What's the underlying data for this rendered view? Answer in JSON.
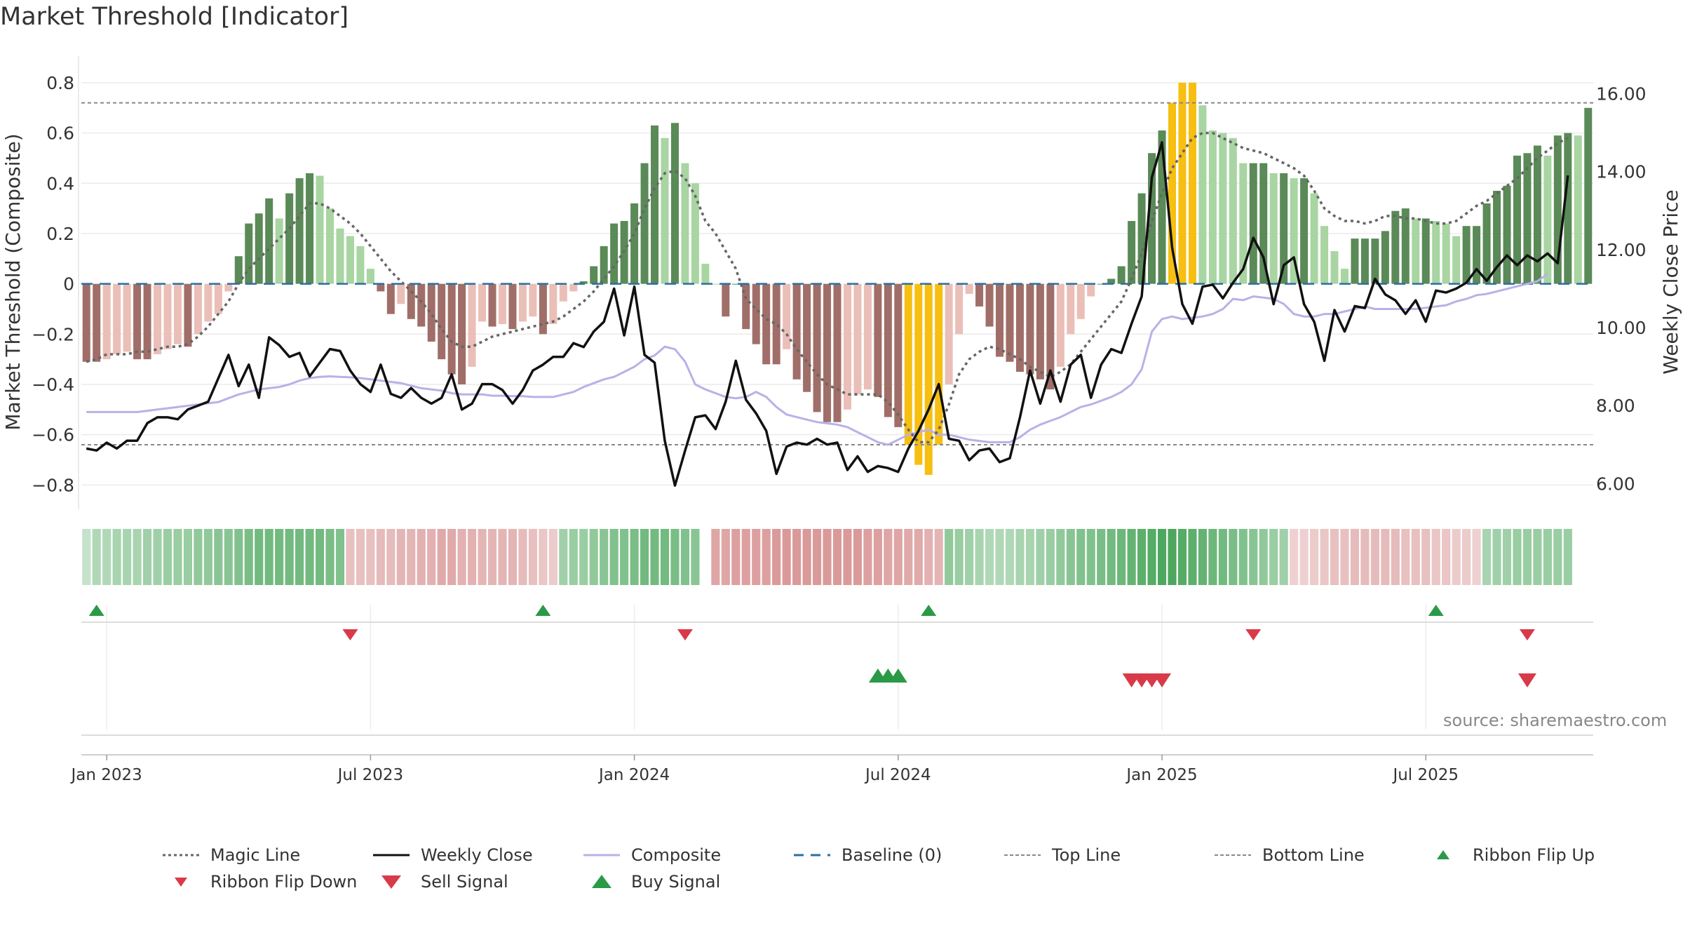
{
  "title": "Market Threshold [Indicator]",
  "source": "source: sharemaestro.com",
  "colors": {
    "bar_pos_dark": "#5a8a57",
    "bar_pos_light": "#a8d5a2",
    "bar_neg_dark": "#a06e68",
    "bar_neg_light": "#eabfb8",
    "bar_extreme": "#f6bf11",
    "weekly_close": "#111111",
    "composite": "#b9b1e6",
    "magic": "#666666",
    "baseline": "#2b6fa0",
    "buy": "#2a9a47",
    "sell": "#d93a4a"
  },
  "chart_data": {
    "type": "bar",
    "title": "Market Threshold [Indicator]",
    "ylabel": "Market Threshold (Composite)",
    "y2label": "Weekly Close Price",
    "ylim": [
      -0.88,
      0.85
    ],
    "y2lim": [
      5.45,
      16.6
    ],
    "yticks": [
      "0.8",
      "0.6",
      "0.4",
      "0.2",
      "0",
      "−0.2",
      "−0.4",
      "−0.6",
      "−0.8"
    ],
    "yticks_values": [
      0.8,
      0.6,
      0.4,
      0.2,
      0,
      -0.2,
      -0.4,
      -0.6,
      -0.8
    ],
    "y2ticks": [
      "16.00",
      "14.00",
      "12.00",
      "10.00",
      "8.00",
      "6.00"
    ],
    "y2ticks_values": [
      16,
      14,
      12,
      10,
      8,
      6
    ],
    "xticks": [
      "Jan 2023",
      "Jul 2023",
      "Jan 2024",
      "Jul 2024",
      "Jan 2025",
      "Jul 2025"
    ],
    "xticks_week": [
      2,
      28,
      54,
      80,
      106,
      132
    ],
    "top_line": 0.72,
    "bottom_line": -0.64,
    "composite_bars": [
      -0.31,
      -0.31,
      -0.3,
      -0.28,
      -0.27,
      -0.3,
      -0.3,
      -0.28,
      -0.26,
      -0.24,
      -0.25,
      -0.2,
      -0.15,
      -0.12,
      -0.03,
      0.11,
      0.24,
      0.28,
      0.34,
      0.26,
      0.36,
      0.42,
      0.44,
      0.43,
      0.3,
      0.22,
      0.19,
      0.15,
      0.06,
      -0.03,
      -0.12,
      -0.08,
      -0.14,
      -0.17,
      -0.23,
      -0.3,
      -0.36,
      -0.4,
      -0.33,
      -0.15,
      -0.17,
      -0.16,
      -0.18,
      -0.15,
      -0.13,
      -0.2,
      -0.16,
      -0.07,
      -0.03,
      0.01,
      0.07,
      0.15,
      0.24,
      0.25,
      0.32,
      0.48,
      0.63,
      0.58,
      0.64,
      0.48,
      0.4,
      0.08,
      0,
      -0.13,
      0,
      -0.18,
      -0.24,
      -0.32,
      -0.32,
      -0.26,
      -0.38,
      -0.43,
      -0.51,
      -0.55,
      -0.55,
      -0.5,
      -0.44,
      -0.42,
      -0.45,
      -0.53,
      -0.57,
      -0.64,
      -0.72,
      -0.76,
      -0.64,
      -0.4,
      -0.2,
      -0.04,
      -0.09,
      -0.17,
      -0.29,
      -0.31,
      -0.35,
      -0.36,
      -0.38,
      -0.42,
      -0.33,
      -0.2,
      -0.14,
      -0.05,
      0,
      0.02,
      0.07,
      0.25,
      0.36,
      0.52,
      0.61,
      0.72,
      0.8,
      0.8,
      0.71,
      0.61,
      0.6,
      0.58,
      0.48,
      0.48,
      0.48,
      0.44,
      0.44,
      0.42,
      0.42,
      0.36,
      0.23,
      0.13,
      0.06,
      0.18,
      0.18,
      0.18,
      0.21,
      0.29,
      0.3,
      0.26,
      0.26,
      0.25,
      0.24,
      0.19,
      0.23,
      0.23,
      0.32,
      0.37,
      0.39,
      0.51,
      0.52,
      0.55,
      0.51,
      0.59,
      0.6,
      0.59,
      0.7
    ],
    "weekly_close": [
      6.9,
      6.85,
      7.05,
      6.9,
      7.1,
      7.1,
      7.55,
      7.7,
      7.7,
      7.65,
      7.9,
      8,
      8.1,
      8.7,
      9.3,
      8.5,
      9.05,
      8.2,
      9.75,
      9.55,
      9.25,
      9.35,
      8.75,
      9.1,
      9.45,
      9.4,
      8.9,
      8.55,
      8.35,
      9.05,
      8.3,
      8.2,
      8.45,
      8.2,
      8.05,
      8.2,
      8.8,
      7.9,
      8.05,
      8.55,
      8.55,
      8.4,
      8.05,
      8.4,
      8.9,
      9.05,
      9.25,
      9.25,
      9.6,
      9.5,
      9.9,
      10.15,
      11,
      9.8,
      11.05,
      9.3,
      9.1,
      7.1,
      5.95,
      6.85,
      7.7,
      7.75,
      7.4,
      8.1,
      9.15,
      8.15,
      7.8,
      7.35,
      6.25,
      6.95,
      7.05,
      7,
      7.15,
      7,
      7.05,
      6.35,
      6.7,
      6.3,
      6.45,
      6.4,
      6.3,
      6.9,
      7.35,
      7.9,
      8.55,
      7.15,
      7.1,
      6.6,
      6.85,
      6.9,
      6.55,
      6.65,
      7.7,
      8.9,
      8.05,
      8.9,
      8.1,
      9.05,
      9.3,
      8.2,
      9.05,
      9.45,
      9.35,
      10.1,
      10.8,
      13.85,
      14.75,
      12.05,
      10.6,
      10.1,
      11.05,
      11.1,
      10.75,
      11.15,
      11.5,
      12.3,
      11.8,
      10.6,
      11.6,
      11.8,
      10.6,
      10.15,
      9.15,
      10.45,
      9.9,
      10.55,
      10.5,
      11.25,
      10.85,
      10.7,
      10.35,
      10.7,
      10.15,
      10.95,
      10.9,
      11.0,
      11.15,
      11.5,
      11.2,
      11.55,
      11.85,
      11.6,
      11.85,
      11.7,
      11.9,
      11.65,
      13.9
    ],
    "composite_line": [
      -0.51,
      -0.51,
      -0.51,
      -0.51,
      -0.51,
      -0.51,
      -0.505,
      -0.5,
      -0.495,
      -0.49,
      -0.485,
      -0.48,
      -0.475,
      -0.47,
      -0.455,
      -0.44,
      -0.43,
      -0.42,
      -0.415,
      -0.41,
      -0.4,
      -0.385,
      -0.375,
      -0.37,
      -0.368,
      -0.37,
      -0.372,
      -0.375,
      -0.38,
      -0.385,
      -0.39,
      -0.395,
      -0.405,
      -0.415,
      -0.42,
      -0.425,
      -0.435,
      -0.44,
      -0.44,
      -0.44,
      -0.445,
      -0.445,
      -0.447,
      -0.447,
      -0.45,
      -0.45,
      -0.45,
      -0.44,
      -0.43,
      -0.41,
      -0.395,
      -0.38,
      -0.37,
      -0.35,
      -0.33,
      -0.3,
      -0.285,
      -0.25,
      -0.26,
      -0.31,
      -0.4,
      -0.42,
      -0.435,
      -0.45,
      -0.455,
      -0.45,
      -0.43,
      -0.45,
      -0.49,
      -0.52,
      -0.53,
      -0.54,
      -0.55,
      -0.555,
      -0.56,
      -0.57,
      -0.59,
      -0.61,
      -0.63,
      -0.64,
      -0.62,
      -0.6,
      -0.59,
      -0.58,
      -0.6,
      -0.6,
      -0.61,
      -0.62,
      -0.625,
      -0.63,
      -0.63,
      -0.63,
      -0.61,
      -0.58,
      -0.56,
      -0.545,
      -0.53,
      -0.51,
      -0.49,
      -0.48,
      -0.465,
      -0.45,
      -0.43,
      -0.4,
      -0.34,
      -0.19,
      -0.14,
      -0.13,
      -0.14,
      -0.135,
      -0.13,
      -0.12,
      -0.1,
      -0.06,
      -0.065,
      -0.05,
      -0.055,
      -0.06,
      -0.08,
      -0.12,
      -0.13,
      -0.13,
      -0.12,
      -0.12,
      -0.11,
      -0.1,
      -0.09,
      -0.1,
      -0.1,
      -0.1,
      -0.1,
      -0.1,
      -0.095,
      -0.09,
      -0.085,
      -0.07,
      -0.06,
      -0.045,
      -0.04,
      -0.03,
      -0.02,
      -0.01,
      0,
      0.01,
      0.04
    ],
    "magic_line": [
      -0.31,
      -0.3,
      -0.28,
      -0.28,
      -0.28,
      -0.27,
      -0.27,
      -0.26,
      -0.25,
      -0.25,
      -0.24,
      -0.21,
      -0.17,
      -0.12,
      -0.07,
      0,
      0.06,
      0.1,
      0.14,
      0.18,
      0.22,
      0.27,
      0.32,
      0.32,
      0.3,
      0.27,
      0.24,
      0.2,
      0.15,
      0.1,
      0.05,
      0.01,
      -0.03,
      -0.07,
      -0.12,
      -0.18,
      -0.23,
      -0.25,
      -0.25,
      -0.23,
      -0.21,
      -0.2,
      -0.19,
      -0.18,
      -0.17,
      -0.16,
      -0.15,
      -0.13,
      -0.1,
      -0.07,
      -0.03,
      0.02,
      0.07,
      0.13,
      0.2,
      0.3,
      0.38,
      0.44,
      0.45,
      0.42,
      0.35,
      0.25,
      0.2,
      0.13,
      0.06,
      -0.06,
      -0.1,
      -0.14,
      -0.16,
      -0.2,
      -0.26,
      -0.31,
      -0.36,
      -0.4,
      -0.42,
      -0.44,
      -0.44,
      -0.44,
      -0.44,
      -0.47,
      -0.52,
      -0.58,
      -0.63,
      -0.63,
      -0.58,
      -0.48,
      -0.36,
      -0.3,
      -0.27,
      -0.25,
      -0.26,
      -0.28,
      -0.3,
      -0.33,
      -0.35,
      -0.37,
      -0.35,
      -0.32,
      -0.27,
      -0.22,
      -0.17,
      -0.12,
      -0.07,
      0.02,
      0.12,
      0.25,
      0.36,
      0.46,
      0.52,
      0.58,
      0.6,
      0.6,
      0.58,
      0.56,
      0.54,
      0.53,
      0.52,
      0.5,
      0.48,
      0.46,
      0.43,
      0.37,
      0.3,
      0.27,
      0.25,
      0.25,
      0.24,
      0.25,
      0.27,
      0.27,
      0.26,
      0.26,
      0.25,
      0.24,
      0.24,
      0.25,
      0.28,
      0.31,
      0.33,
      0.36,
      0.39,
      0.42,
      0.46,
      0.5,
      0.53,
      0.56,
      0.58
    ],
    "ribbon_strength": [
      0.15,
      0.3,
      0.3,
      0.35,
      0.35,
      0.35,
      0.4,
      0.4,
      0.45,
      0.45,
      0.45,
      0.5,
      0.5,
      0.55,
      0.55,
      0.6,
      0.65,
      0.7,
      0.7,
      0.7,
      0.7,
      0.7,
      0.7,
      0.7,
      0.65,
      0.6,
      -0.35,
      -0.35,
      -0.35,
      -0.4,
      -0.4,
      -0.45,
      -0.45,
      -0.5,
      -0.5,
      -0.55,
      -0.55,
      -0.5,
      -0.5,
      -0.45,
      -0.45,
      -0.45,
      -0.45,
      -0.4,
      -0.35,
      -0.3,
      -0.25,
      0.4,
      0.45,
      0.45,
      0.5,
      0.55,
      0.6,
      0.6,
      0.65,
      0.7,
      0.7,
      0.7,
      0.65,
      0.6,
      0.55,
      0,
      -0.6,
      -0.6,
      -0.65,
      -0.65,
      -0.65,
      -0.65,
      -0.7,
      -0.7,
      -0.7,
      -0.7,
      -0.7,
      -0.7,
      -0.7,
      -0.7,
      -0.7,
      -0.65,
      -0.65,
      -0.6,
      -0.6,
      -0.55,
      -0.55,
      -0.5,
      -0.45,
      0.5,
      0.45,
      0.4,
      0.35,
      0.3,
      0.3,
      0.3,
      0.35,
      0.35,
      0.4,
      0.45,
      0.5,
      0.55,
      0.6,
      0.6,
      0.65,
      0.7,
      0.75,
      0.8,
      0.85,
      0.9,
      0.95,
      0.95,
      0.9,
      0.85,
      0.8,
      0.75,
      0.7,
      0.65,
      0.6,
      0.55,
      0.5,
      0.45,
      0.4,
      -0.2,
      -0.2,
      -0.25,
      -0.3,
      -0.35,
      -0.35,
      -0.4,
      -0.4,
      -0.4,
      -0.4,
      -0.4,
      -0.35,
      -0.35,
      -0.35,
      -0.3,
      -0.3,
      -0.25,
      -0.25,
      -0.2,
      0.35,
      0.4,
      0.4,
      0.45,
      0.45,
      0.45,
      0.45,
      0.45,
      0.45
    ],
    "ribbon_flip_up_weeks": [
      1,
      45,
      83,
      133
    ],
    "ribbon_flip_down_weeks": [
      26,
      59,
      115,
      142
    ],
    "buy_signal_weeks": [
      78,
      79,
      80
    ],
    "sell_signal_weeks": [
      103,
      104,
      105,
      106,
      142
    ],
    "legend": [
      {
        "label": "Magic Line",
        "style": "dotted",
        "color": "#666666"
      },
      {
        "label": "Weekly Close",
        "style": "solid",
        "color": "#111111"
      },
      {
        "label": "Composite",
        "style": "solid",
        "color": "#b9b1e6"
      },
      {
        "label": "Baseline (0)",
        "style": "dashed",
        "color": "#2b6fa0"
      },
      {
        "label": "Top Line",
        "style": "fine-dashed",
        "color": "#888888"
      },
      {
        "label": "Bottom Line",
        "style": "fine-dashed",
        "color": "#888888"
      },
      {
        "label": "Ribbon Flip Up",
        "style": "tri-up-small",
        "color": "#2a9a47"
      },
      {
        "label": "Ribbon Flip Down",
        "style": "tri-down-small",
        "color": "#d93a4a"
      },
      {
        "label": "Sell Signal",
        "style": "tri-down-big",
        "color": "#d93a4a"
      },
      {
        "label": "Buy Signal",
        "style": "tri-up-big",
        "color": "#2a9a47"
      }
    ]
  }
}
